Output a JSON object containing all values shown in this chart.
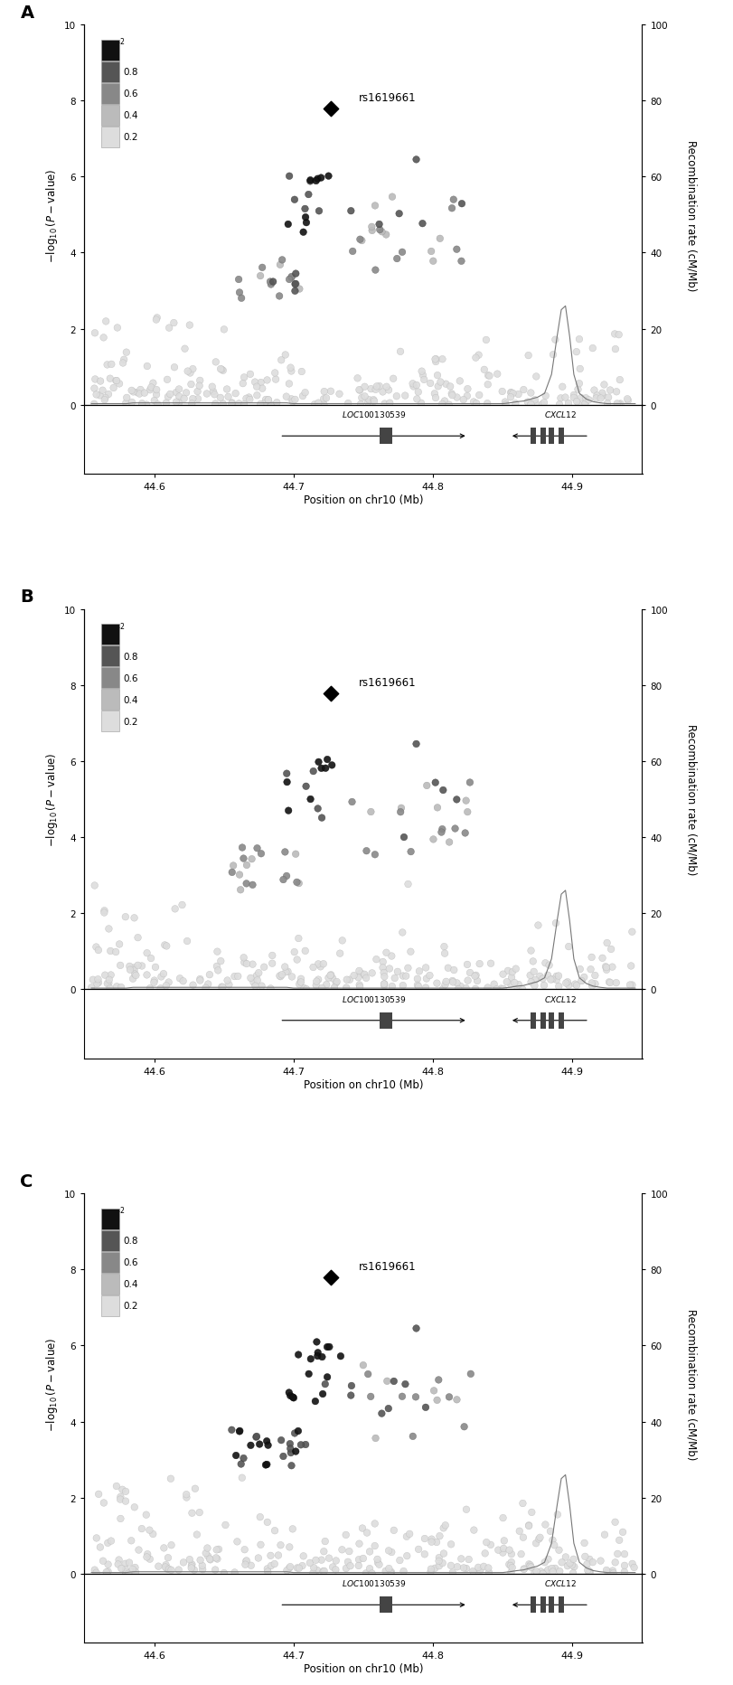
{
  "panels": [
    "A",
    "B",
    "C"
  ],
  "xlim": [
    44.55,
    44.95
  ],
  "ylim": [
    0,
    10
  ],
  "recomb_ylim": [
    0,
    100
  ],
  "xticks": [
    44.6,
    44.7,
    44.8,
    44.9
  ],
  "yticks": [
    0,
    2,
    4,
    6,
    8,
    10
  ],
  "recomb_yticks": [
    0,
    20,
    40,
    60,
    80,
    100
  ],
  "xlabel": "Position on chr10 (Mb)",
  "ylabel": "$-\\log_{10}(P-\\mathrm{value})$",
  "recomb_ylabel": "Recombination rate (cM/Mb)",
  "lead_snp_label": "rs1619661",
  "lead_snp_x": 44.7265,
  "lead_snp_y": 7.78,
  "background_color": "#ffffff",
  "recomb_x": [
    44.555,
    44.56,
    44.565,
    44.57,
    44.575,
    44.58,
    44.585,
    44.59,
    44.595,
    44.6,
    44.605,
    44.61,
    44.615,
    44.62,
    44.625,
    44.63,
    44.635,
    44.64,
    44.645,
    44.65,
    44.655,
    44.66,
    44.665,
    44.67,
    44.675,
    44.68,
    44.685,
    44.69,
    44.695,
    44.7,
    44.705,
    44.71,
    44.715,
    44.72,
    44.725,
    44.73,
    44.735,
    44.74,
    44.745,
    44.75,
    44.755,
    44.76,
    44.765,
    44.77,
    44.775,
    44.78,
    44.785,
    44.79,
    44.795,
    44.8,
    44.805,
    44.81,
    44.815,
    44.82,
    44.825,
    44.83,
    44.835,
    44.84,
    44.845,
    44.85,
    44.855,
    44.86,
    44.865,
    44.87,
    44.875,
    44.88,
    44.885,
    44.889,
    44.892,
    44.895,
    44.898,
    44.901,
    44.905,
    44.91,
    44.915,
    44.92,
    44.925,
    44.93,
    44.935,
    44.94,
    44.945
  ],
  "recomb_y": [
    0.3,
    0.3,
    0.3,
    0.3,
    0.3,
    0.3,
    0.5,
    0.5,
    0.5,
    0.5,
    0.5,
    0.5,
    0.5,
    0.5,
    0.5,
    0.5,
    0.5,
    0.5,
    0.5,
    0.5,
    0.5,
    0.5,
    0.5,
    0.5,
    0.5,
    0.5,
    0.5,
    0.5,
    0.5,
    0.3,
    0.3,
    0.3,
    0.3,
    0.3,
    0.3,
    0.3,
    0.3,
    0.3,
    0.3,
    0.3,
    0.3,
    0.3,
    0.3,
    0.3,
    0.3,
    0.3,
    0.3,
    0.3,
    0.3,
    0.3,
    0.3,
    0.3,
    0.3,
    0.3,
    0.3,
    0.3,
    0.3,
    0.3,
    0.3,
    0.3,
    0.5,
    0.8,
    1.0,
    1.5,
    2.0,
    3.0,
    8.0,
    18.0,
    25.0,
    26.0,
    18.0,
    8.0,
    3.0,
    1.5,
    0.8,
    0.5,
    0.3,
    0.3,
    0.3,
    0.3,
    0.3
  ],
  "figsize": [
    8.12,
    18.65
  ],
  "dpi": 100,
  "panel_seeds": [
    42,
    142,
    242
  ]
}
